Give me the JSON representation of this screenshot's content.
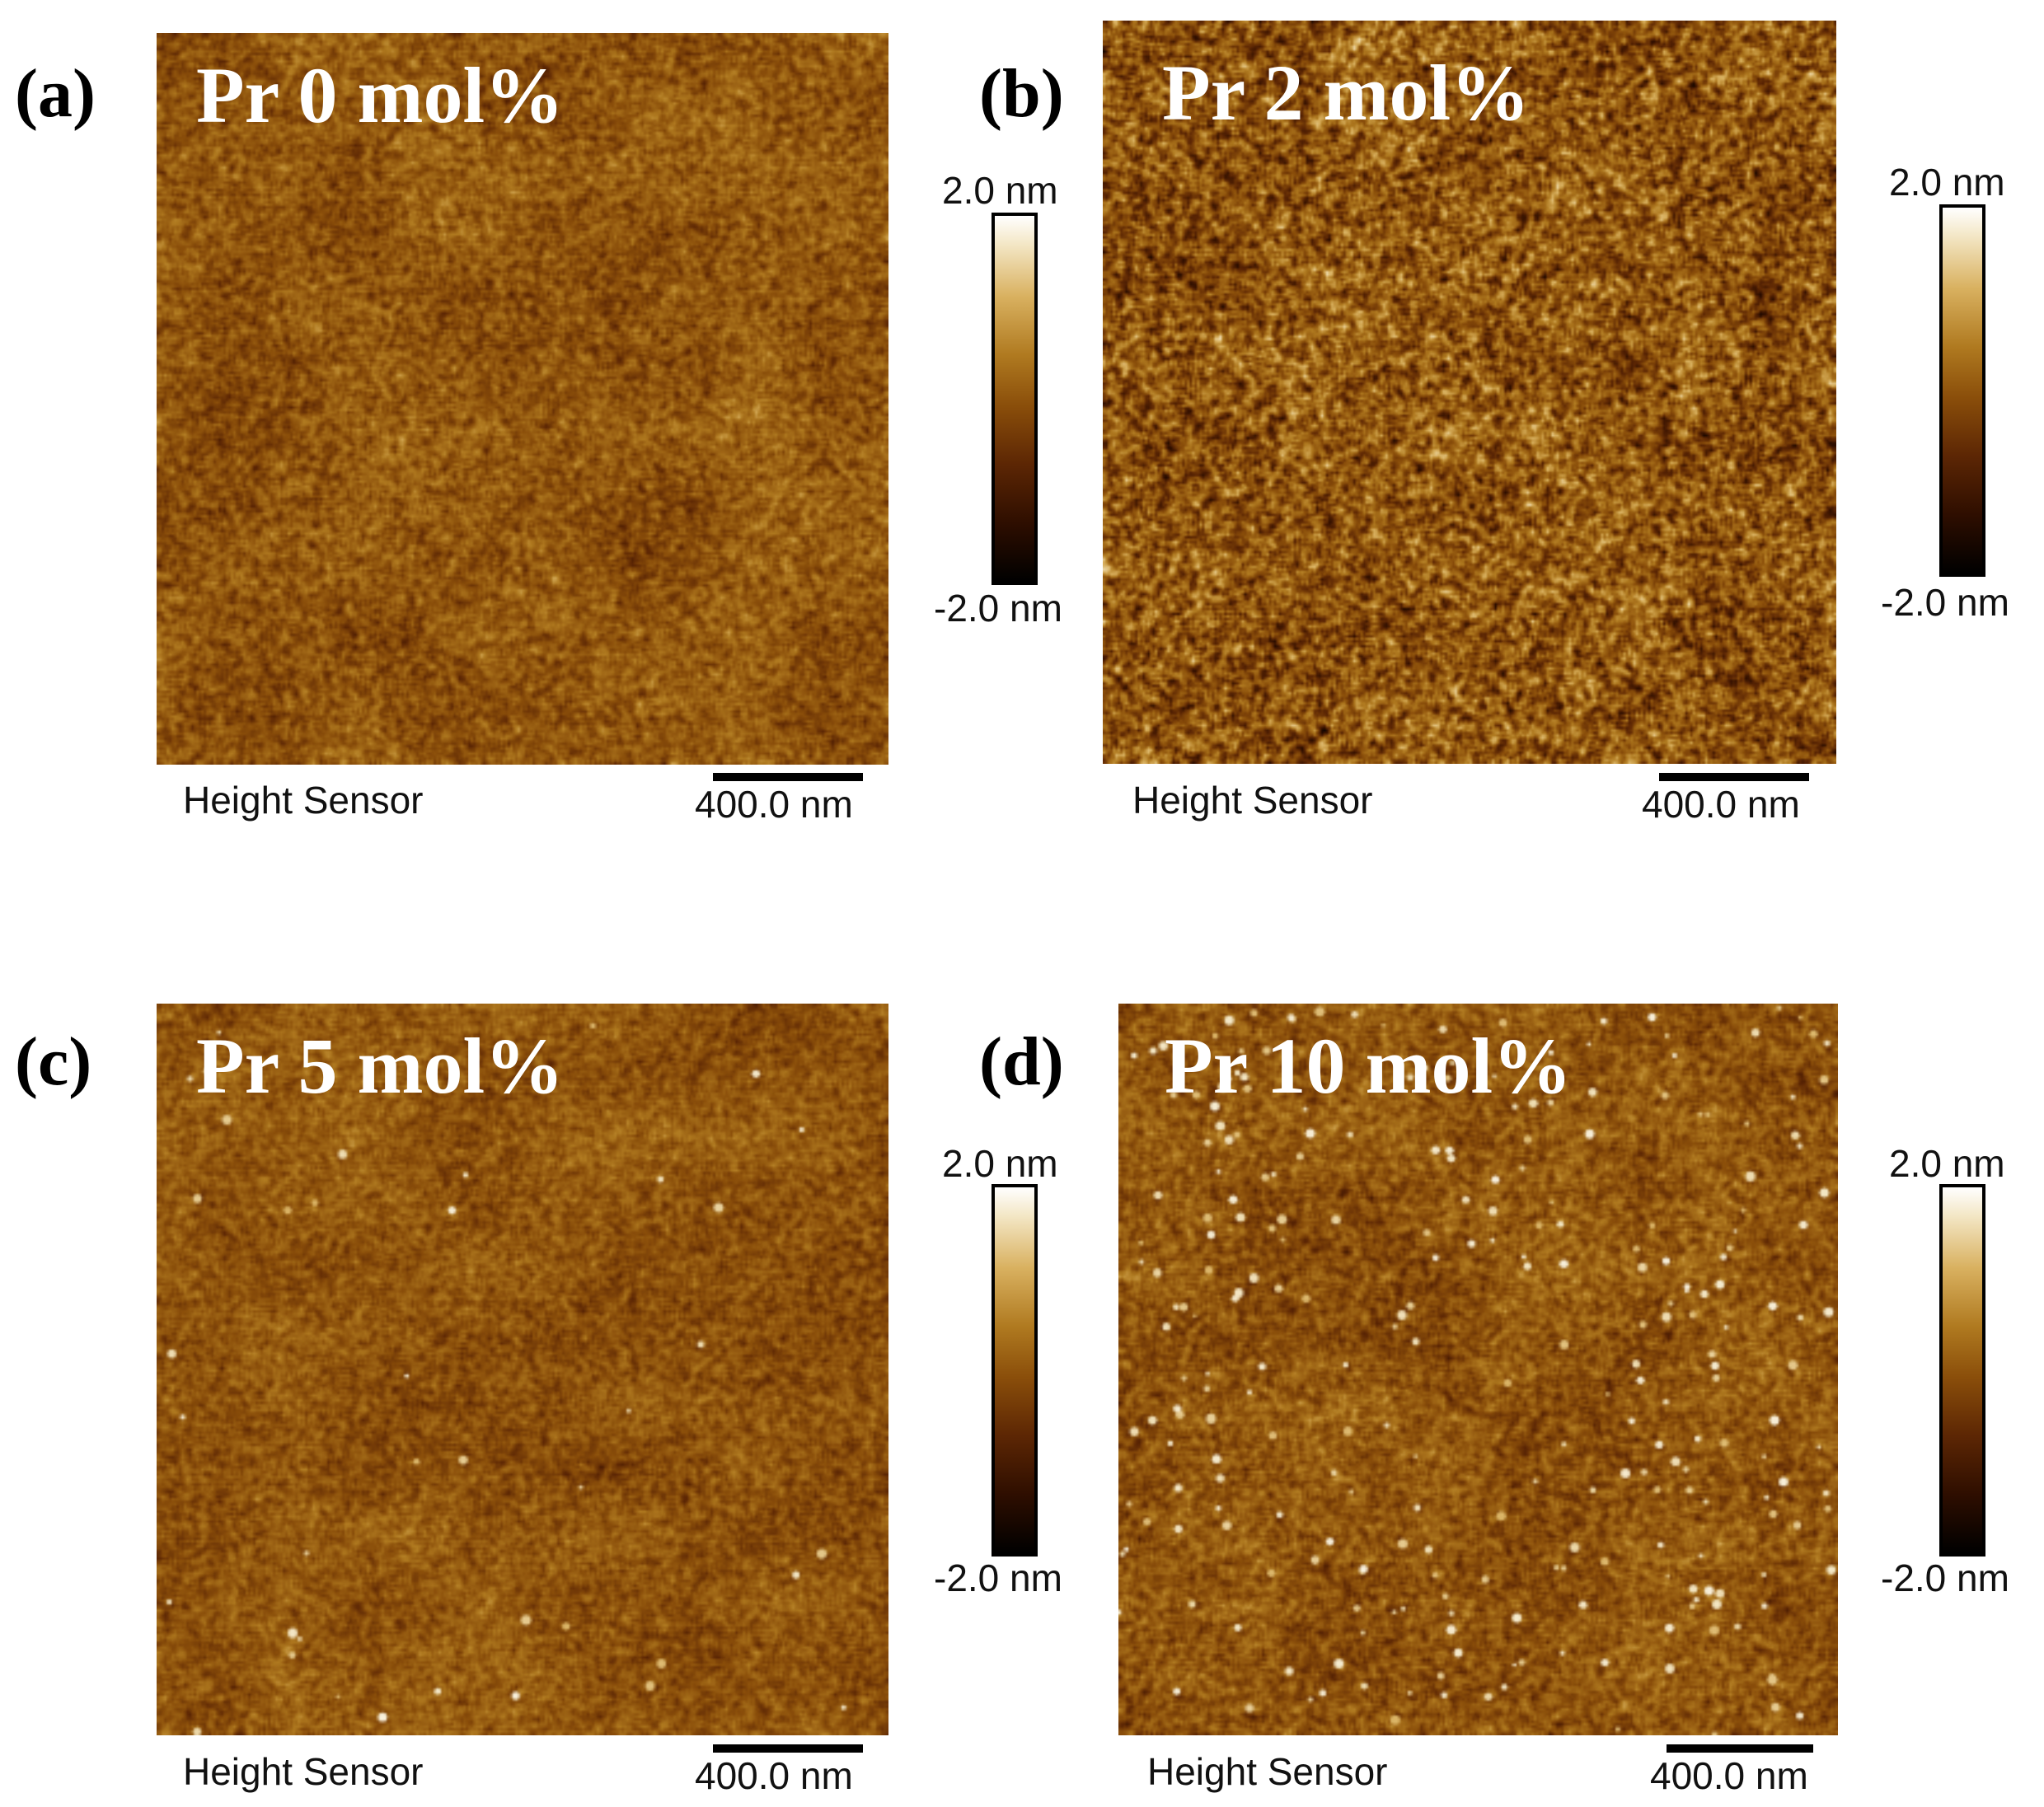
{
  "panels": [
    {
      "letter": "(a)",
      "title": "Pr 0 mol%",
      "sensor_label": "Height Sensor",
      "scale_bar_label": "400.0 nm",
      "colorbar": {
        "max_label": "2.0 nm",
        "min_label": "-2.0 nm"
      }
    },
    {
      "letter": "(b)",
      "title": "Pr 2 mol%",
      "sensor_label": "Height Sensor",
      "scale_bar_label": "400.0 nm",
      "colorbar": {
        "max_label": "2.0 nm",
        "min_label": "-2.0 nm"
      }
    },
    {
      "letter": "(c)",
      "title": "Pr 5 mol%",
      "sensor_label": "Height Sensor",
      "scale_bar_label": "400.0 nm",
      "colorbar": {
        "max_label": "2.0 nm",
        "min_label": "-2.0 nm"
      }
    },
    {
      "letter": "(d)",
      "title": "Pr 10 mol%",
      "sensor_label": "Height Sensor",
      "scale_bar_label": "400.0 nm",
      "colorbar": {
        "max_label": "2.0 nm",
        "min_label": "-2.0 nm"
      }
    }
  ],
  "colormap": [
    "#000000",
    "#2e0e00",
    "#5c2604",
    "#8a4e0a",
    "#b07a20",
    "#d9b160",
    "#f3e6c4",
    "#ffffff"
  ]
}
